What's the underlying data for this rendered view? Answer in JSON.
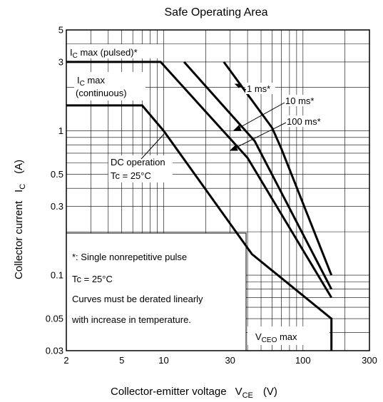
{
  "chart_data": {
    "type": "line",
    "title": "Safe Operating Area",
    "xlabel": {
      "text": "Collector-emitter voltage",
      "symbol": "V",
      "subscript": "CE",
      "unit": "(V)"
    },
    "ylabel": {
      "text": "Collector current",
      "symbol": "I",
      "subscript": "C",
      "unit": "(A)"
    },
    "x_scale": "log",
    "y_scale": "log",
    "xlim": [
      2,
      300
    ],
    "ylim": [
      0.03,
      5
    ],
    "grid": true,
    "x_ticks": [
      {
        "value": 2,
        "label": "2"
      },
      {
        "value": 5,
        "label": "5"
      },
      {
        "value": 10,
        "label": "10"
      },
      {
        "value": 30,
        "label": "30"
      },
      {
        "value": 100,
        "label": "100"
      },
      {
        "value": 300,
        "label": "300"
      }
    ],
    "y_ticks": [
      {
        "value": 0.03,
        "label": "0.03"
      },
      {
        "value": 0.05,
        "label": "0.05"
      },
      {
        "value": 0.1,
        "label": "0.1"
      },
      {
        "value": 0.3,
        "label": "0.3"
      },
      {
        "value": 0.5,
        "label": "0.5"
      },
      {
        "value": 1,
        "label": "1"
      },
      {
        "value": 3,
        "label": "3"
      },
      {
        "value": 5,
        "label": "5"
      }
    ],
    "series": [
      {
        "name": "DC operation Tc = 25°C",
        "x": [
          2,
          7,
          10,
          43,
          160,
          160
        ],
        "y": [
          1.5,
          1.5,
          1.0,
          0.14,
          0.05,
          0.03
        ]
      },
      {
        "name": "100 ms*",
        "x": [
          2,
          9.5,
          40,
          160
        ],
        "y": [
          3,
          3,
          0.65,
          0.07
        ]
      },
      {
        "name": "10 ms*",
        "x": [
          14,
          45,
          160
        ],
        "y": [
          3,
          0.85,
          0.08
        ]
      },
      {
        "name": "1 ms*",
        "x": [
          27,
          60,
          70,
          160
        ],
        "y": [
          3,
          1.05,
          0.75,
          0.1
        ]
      }
    ],
    "annotations": {
      "ic_max_pulsed": {
        "prefix": "I",
        "sub": "C",
        "text": " max (pulsed)*"
      },
      "ic_max_cont_line1": {
        "prefix": "I",
        "sub": "C",
        "text": " max"
      },
      "ic_max_cont_line2": "(continuous)",
      "label_1ms": "1 ms*",
      "label_10ms": "10 ms*",
      "label_100ms": "100 ms*",
      "dc_line1": "DC operation",
      "dc_line2": "Tc = 25°C",
      "vceo": {
        "prefix": "V",
        "sub": "CEO",
        "text": " max"
      }
    },
    "notes": [
      "*:  Single nonrepetitive pulse",
      "Tc = 25°C",
      "Curves must be derated linearly",
      "with increase in temperature."
    ]
  }
}
